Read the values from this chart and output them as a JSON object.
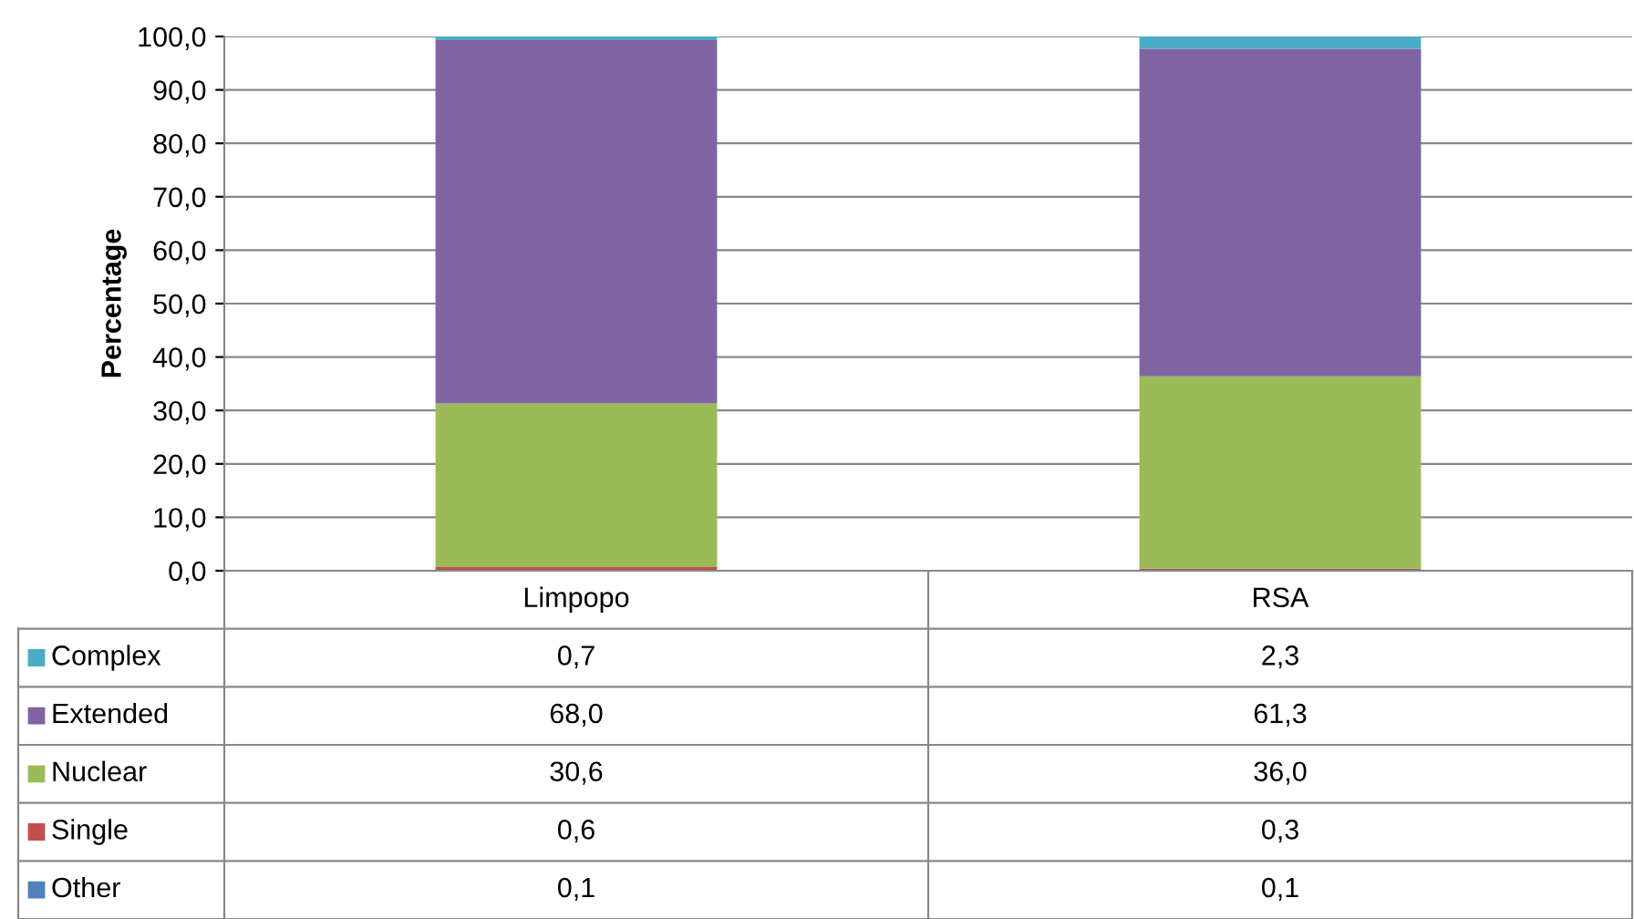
{
  "chart_data": {
    "type": "bar",
    "stacked": true,
    "ylabel": "Percentage",
    "categories": [
      "Limpopo",
      "RSA"
    ],
    "series": [
      {
        "name": "Other",
        "color": "#4f81bd",
        "values": [
          0.1,
          0.1
        ],
        "value_labels": [
          "0,1",
          "0,1"
        ]
      },
      {
        "name": "Single",
        "color": "#c0504d",
        "values": [
          0.6,
          0.3
        ],
        "value_labels": [
          "0,6",
          "0,3"
        ]
      },
      {
        "name": "Nuclear",
        "color": "#9bbb59",
        "values": [
          30.6,
          36.0
        ],
        "value_labels": [
          "30,6",
          "36,0"
        ]
      },
      {
        "name": "Extended",
        "color": "#8064a2",
        "values": [
          68.0,
          61.3
        ],
        "value_labels": [
          "68,0",
          "61,3"
        ]
      },
      {
        "name": "Complex",
        "color": "#4bacc6",
        "values": [
          0.7,
          2.3
        ],
        "value_labels": [
          "0,7",
          "2,3"
        ]
      }
    ],
    "ylim": [
      0,
      100
    ],
    "yticks": [
      {
        "value": 0,
        "label": "0,0"
      },
      {
        "value": 10,
        "label": "10,0"
      },
      {
        "value": 20,
        "label": "20,0"
      },
      {
        "value": 30,
        "label": "30,0"
      },
      {
        "value": 40,
        "label": "40,0"
      },
      {
        "value": 50,
        "label": "50,0"
      },
      {
        "value": 60,
        "label": "60,0"
      },
      {
        "value": 70,
        "label": "70,0"
      },
      {
        "value": 80,
        "label": "80,0"
      },
      {
        "value": 90,
        "label": "90,0"
      },
      {
        "value": 100,
        "label": "100,0"
      }
    ],
    "grid": "y",
    "legend": "bottom left"
  }
}
